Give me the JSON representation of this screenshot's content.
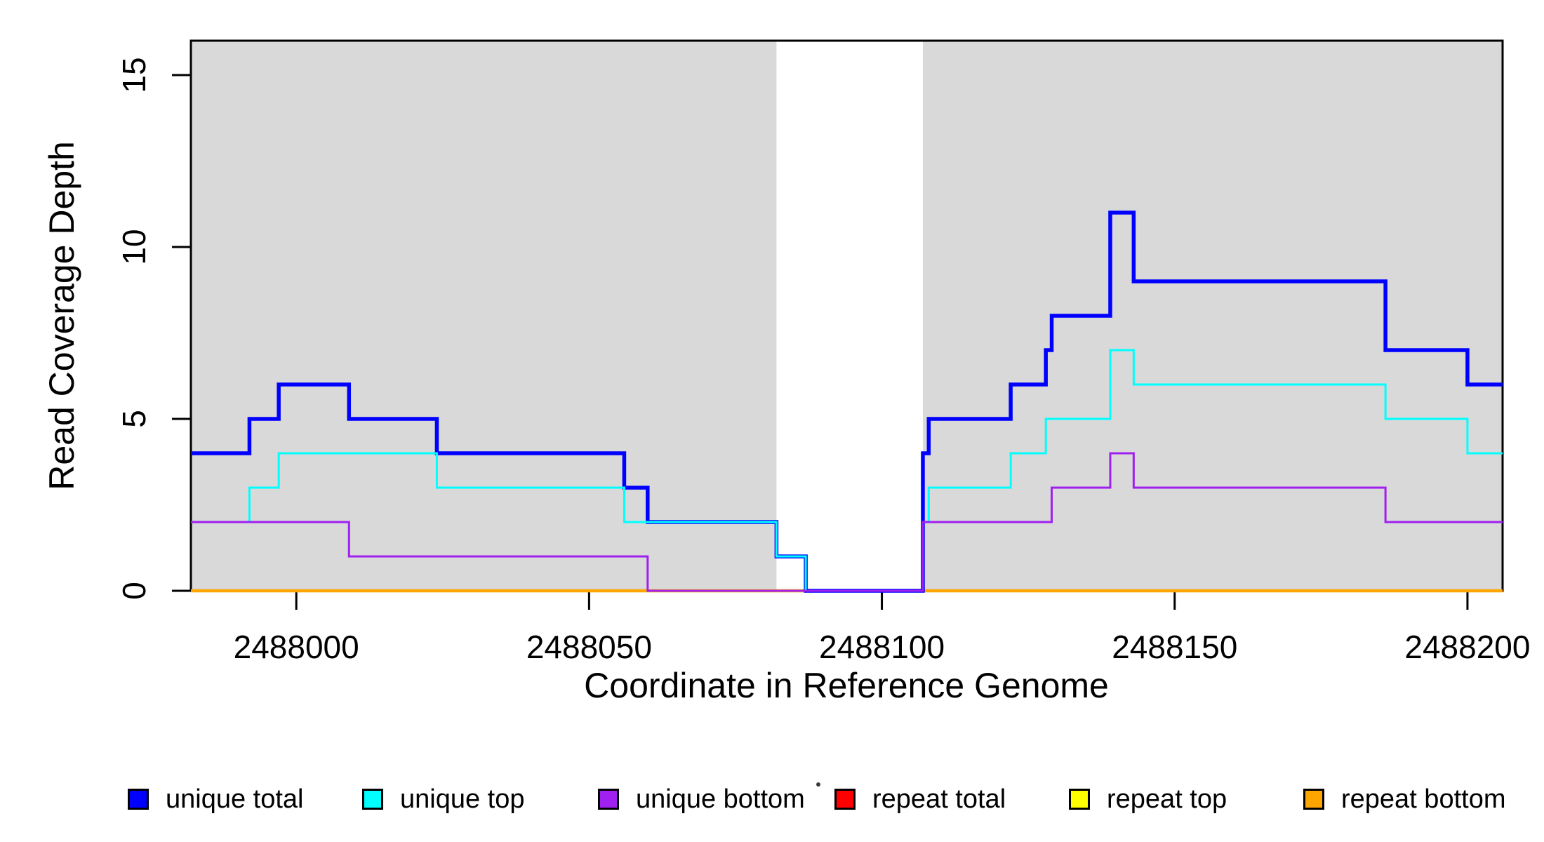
{
  "chart_data": {
    "type": "step-line",
    "title": "",
    "x_axis": {
      "label": "Coordinate in Reference Genome",
      "ticks": [
        2488000,
        2488050,
        2488100,
        2488150,
        2488200
      ],
      "lim": [
        2487982,
        2488206
      ],
      "grid": false
    },
    "y_axis": {
      "label": "Read Coverage Depth",
      "ticks": [
        0,
        5,
        10,
        15
      ],
      "lim": [
        0,
        16
      ],
      "grid": false
    },
    "shade_color": "#D9D9D9",
    "shaded_regions": [
      {
        "from": 2487982,
        "to": 2488082
      },
      {
        "from": 2488107,
        "to": 2488206
      }
    ],
    "draw_order": [
      "repeat total",
      "repeat top",
      "repeat bottom",
      "unique total",
      "unique top",
      "unique bottom"
    ],
    "series": [
      {
        "name": "unique total",
        "color": "#0000FF",
        "line_width": 5.5,
        "steps": [
          [
            2487982,
            4
          ],
          [
            2487992,
            5
          ],
          [
            2487997,
            6
          ],
          [
            2488009,
            5
          ],
          [
            2488024,
            4
          ],
          [
            2488056,
            3
          ],
          [
            2488060,
            2
          ],
          [
            2488082,
            1
          ],
          [
            2488087,
            0
          ],
          [
            2488107,
            4
          ],
          [
            2488108,
            5
          ],
          [
            2488122,
            6
          ],
          [
            2488128,
            7
          ],
          [
            2488129,
            8
          ],
          [
            2488139,
            11
          ],
          [
            2488143,
            9
          ],
          [
            2488186,
            7
          ],
          [
            2488200,
            6
          ],
          [
            2488206,
            6
          ]
        ]
      },
      {
        "name": "unique top",
        "color": "#00FFFF",
        "line_width": 3,
        "steps": [
          [
            2487982,
            2
          ],
          [
            2487992,
            3
          ],
          [
            2487997,
            4
          ],
          [
            2488024,
            3
          ],
          [
            2488056,
            2
          ],
          [
            2488082,
            1
          ],
          [
            2488087,
            0
          ],
          [
            2488107,
            2
          ],
          [
            2488108,
            3
          ],
          [
            2488122,
            4
          ],
          [
            2488128,
            5
          ],
          [
            2488139,
            7
          ],
          [
            2488143,
            6
          ],
          [
            2488186,
            5
          ],
          [
            2488200,
            4
          ],
          [
            2488206,
            4
          ]
        ]
      },
      {
        "name": "unique bottom",
        "color": "#A020F0",
        "line_width": 3,
        "steps": [
          [
            2487982,
            2
          ],
          [
            2488009,
            1
          ],
          [
            2488060,
            0
          ],
          [
            2488107,
            2
          ],
          [
            2488129,
            3
          ],
          [
            2488139,
            4
          ],
          [
            2488143,
            3
          ],
          [
            2488186,
            2
          ],
          [
            2488206,
            2
          ]
        ]
      },
      {
        "name": "repeat total",
        "color": "#FF0000",
        "line_width": 2.5,
        "steps": [
          [
            2487982,
            0
          ],
          [
            2488206,
            0
          ]
        ]
      },
      {
        "name": "repeat top",
        "color": "#FFFF00",
        "line_width": 2.5,
        "steps": [
          [
            2487982,
            0
          ],
          [
            2488206,
            0
          ]
        ]
      },
      {
        "name": "repeat bottom",
        "color": "#FFA500",
        "line_width": 4.5,
        "steps": [
          [
            2487982,
            0
          ],
          [
            2488206,
            0
          ]
        ]
      }
    ]
  },
  "legend": {
    "items": [
      {
        "label": "unique total",
        "color": "#0000FF"
      },
      {
        "label": "unique top",
        "color": "#00FFFF"
      },
      {
        "label": "unique bottom",
        "color": "#A020F0"
      },
      {
        "label": "repeat total",
        "color": "#FF0000"
      },
      {
        "label": "repeat top",
        "color": "#FFFF00"
      },
      {
        "label": "repeat bottom",
        "color": "#FFA500"
      }
    ]
  }
}
